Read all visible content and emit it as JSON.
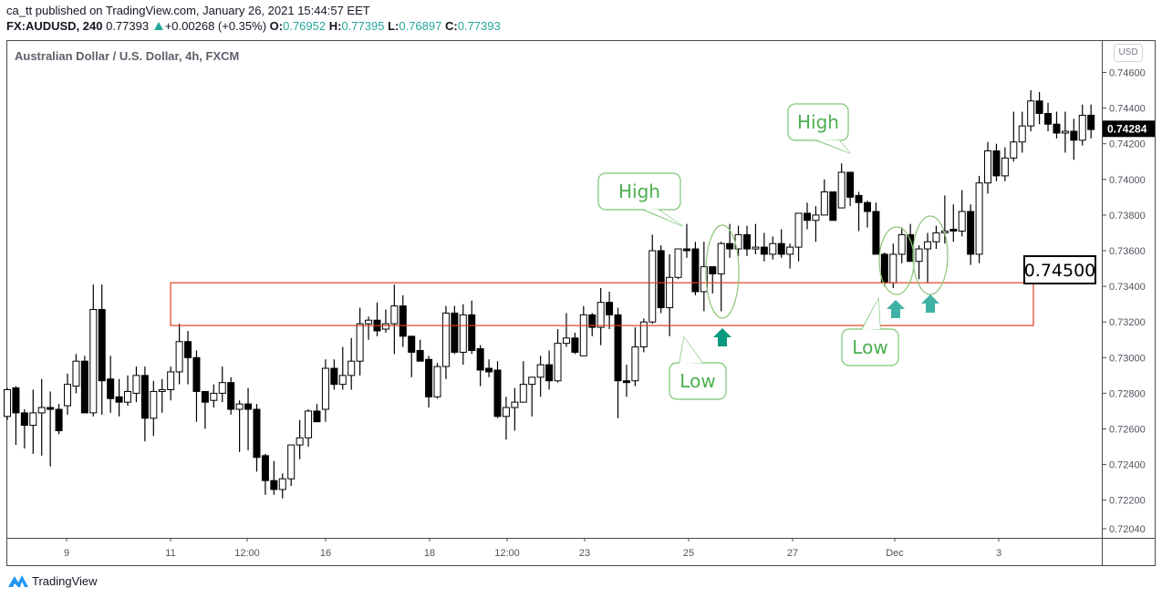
{
  "header": {
    "published_line": "ca_tt published on TradingView.com, January 26, 2021 15:44:57 EET",
    "symbol": "FX:AUDUSD, 240",
    "last": "0.77393",
    "change": "+0.00268 (+0.35%)",
    "o_label": "O:",
    "o": "0.76952",
    "h_label": "H:",
    "h": "0.77395",
    "l_label": "L:",
    "l": "0.76897",
    "c_label": "C:",
    "c": "0.77393"
  },
  "chart_title": "Australian Dollar / U.S. Dollar, 4h, FXCM",
  "currency_button": "USD",
  "footer_brand": "TradingView",
  "colors": {
    "up": "#ffffff",
    "down": "#000000",
    "zone": "#e0401f",
    "callout": "#7cc576",
    "callout_text": "#4caf50",
    "arrow_dark": "#089981",
    "arrow_light": "#3fb2a5",
    "accent": "#26a69a"
  },
  "chart_data": {
    "type": "candlestick",
    "ylim": [
      0.7196,
      0.7467
    ],
    "y_ticks": [
      "0.74600",
      "0.74400",
      "0.74200",
      "0.74000",
      "0.73800",
      "0.73600",
      "0.73400",
      "0.73200",
      "0.73000",
      "0.72800",
      "0.72600",
      "0.72400",
      "0.72200",
      "0.72040"
    ],
    "x_ticks": [
      "9",
      "11",
      "12:00",
      "16",
      "18",
      "12:00",
      "23",
      "25",
      "27",
      "Dec",
      "3"
    ],
    "last_price_label": "0.74284",
    "last_price": 0.74284,
    "ohlc": [
      [
        0.7267,
        0.7283,
        0.7265,
        0.7282
      ],
      [
        0.7283,
        0.7284,
        0.7251,
        0.7269
      ],
      [
        0.7269,
        0.7271,
        0.7249,
        0.7262
      ],
      [
        0.7262,
        0.7282,
        0.7246,
        0.7269
      ],
      [
        0.7269,
        0.7288,
        0.7245,
        0.7272
      ],
      [
        0.7272,
        0.7281,
        0.7239,
        0.7271
      ],
      [
        0.7271,
        0.7274,
        0.7257,
        0.7259
      ],
      [
        0.7273,
        0.7291,
        0.7268,
        0.7285
      ],
      [
        0.7284,
        0.7302,
        0.728,
        0.7298
      ],
      [
        0.7298,
        0.7301,
        0.7269,
        0.7269
      ],
      [
        0.7269,
        0.7341,
        0.7267,
        0.7327
      ],
      [
        0.7327,
        0.7341,
        0.7268,
        0.7287
      ],
      [
        0.7288,
        0.7301,
        0.7269,
        0.7277
      ],
      [
        0.7278,
        0.7288,
        0.7267,
        0.7275
      ],
      [
        0.7275,
        0.729,
        0.7273,
        0.7281
      ],
      [
        0.728,
        0.7295,
        0.7275,
        0.729
      ],
      [
        0.729,
        0.7295,
        0.7253,
        0.7266
      ],
      [
        0.7266,
        0.7287,
        0.7256,
        0.7281
      ],
      [
        0.7281,
        0.7288,
        0.7269,
        0.7282
      ],
      [
        0.7282,
        0.7295,
        0.7276,
        0.7292
      ],
      [
        0.7292,
        0.7319,
        0.7285,
        0.7309
      ],
      [
        0.7309,
        0.7315,
        0.7285,
        0.73
      ],
      [
        0.73,
        0.7304,
        0.7264,
        0.7281
      ],
      [
        0.7281,
        0.7281,
        0.726,
        0.7275
      ],
      [
        0.7276,
        0.7285,
        0.7272,
        0.728
      ],
      [
        0.728,
        0.7295,
        0.7275,
        0.7286
      ],
      [
        0.7286,
        0.7289,
        0.7268,
        0.7271
      ],
      [
        0.7271,
        0.7276,
        0.7247,
        0.7274
      ],
      [
        0.7274,
        0.7283,
        0.7248,
        0.7271
      ],
      [
        0.7271,
        0.7274,
        0.7236,
        0.7244
      ],
      [
        0.7245,
        0.7246,
        0.7223,
        0.7231
      ],
      [
        0.7231,
        0.7242,
        0.7223,
        0.7226
      ],
      [
        0.7226,
        0.7235,
        0.7221,
        0.7232
      ],
      [
        0.7232,
        0.7251,
        0.7228,
        0.7251
      ],
      [
        0.7251,
        0.7265,
        0.7243,
        0.7255
      ],
      [
        0.7255,
        0.7271,
        0.725,
        0.727
      ],
      [
        0.727,
        0.7274,
        0.7264,
        0.7264
      ],
      [
        0.7271,
        0.7299,
        0.7264,
        0.7294
      ],
      [
        0.7294,
        0.7299,
        0.7282,
        0.7285
      ],
      [
        0.7285,
        0.7306,
        0.7282,
        0.729
      ],
      [
        0.729,
        0.7311,
        0.7282,
        0.7298
      ],
      [
        0.7298,
        0.7328,
        0.729,
        0.7319
      ],
      [
        0.7319,
        0.7323,
        0.731,
        0.7321
      ],
      [
        0.7321,
        0.7331,
        0.7312,
        0.7315
      ],
      [
        0.7316,
        0.7327,
        0.7314,
        0.7319
      ],
      [
        0.7319,
        0.7341,
        0.7302,
        0.7329
      ],
      [
        0.7329,
        0.7335,
        0.7306,
        0.7312
      ],
      [
        0.7312,
        0.7312,
        0.7289,
        0.7303
      ],
      [
        0.7304,
        0.731,
        0.7298,
        0.7298
      ],
      [
        0.7299,
        0.7301,
        0.7272,
        0.7278
      ],
      [
        0.7278,
        0.7297,
        0.7277,
        0.7295
      ],
      [
        0.7295,
        0.7329,
        0.7288,
        0.7325
      ],
      [
        0.7325,
        0.7329,
        0.7302,
        0.7303
      ],
      [
        0.7303,
        0.733,
        0.7296,
        0.7324
      ],
      [
        0.7324,
        0.7332,
        0.7302,
        0.7304
      ],
      [
        0.7305,
        0.7307,
        0.7284,
        0.7293
      ],
      [
        0.7294,
        0.7299,
        0.7289,
        0.7292
      ],
      [
        0.7293,
        0.7298,
        0.7266,
        0.7267
      ],
      [
        0.7267,
        0.7278,
        0.7254,
        0.7272
      ],
      [
        0.7272,
        0.7283,
        0.7259,
        0.7275
      ],
      [
        0.7275,
        0.7298,
        0.7275,
        0.7285
      ],
      [
        0.7285,
        0.7289,
        0.7267,
        0.7289
      ],
      [
        0.7289,
        0.7301,
        0.7278,
        0.7296
      ],
      [
        0.7296,
        0.7304,
        0.7282,
        0.7287
      ],
      [
        0.7287,
        0.7316,
        0.7286,
        0.7308
      ],
      [
        0.7308,
        0.7325,
        0.7306,
        0.7311
      ],
      [
        0.7311,
        0.7314,
        0.7302,
        0.7303
      ],
      [
        0.7301,
        0.7329,
        0.7301,
        0.7324
      ],
      [
        0.7324,
        0.7325,
        0.7312,
        0.7317
      ],
      [
        0.7317,
        0.7339,
        0.7307,
        0.7331
      ],
      [
        0.7331,
        0.7337,
        0.7316,
        0.7324
      ],
      [
        0.7324,
        0.7328,
        0.7266,
        0.7287
      ],
      [
        0.7287,
        0.7296,
        0.7278,
        0.7286
      ],
      [
        0.7287,
        0.7317,
        0.7284,
        0.7306
      ],
      [
        0.7306,
        0.7322,
        0.7303,
        0.732
      ],
      [
        0.732,
        0.7369,
        0.7319,
        0.736
      ],
      [
        0.736,
        0.7363,
        0.7325,
        0.7328
      ],
      [
        0.7328,
        0.7358,
        0.7312,
        0.7345
      ],
      [
        0.7345,
        0.7361,
        0.7344,
        0.7361
      ],
      [
        0.7361,
        0.7375,
        0.7356,
        0.736
      ],
      [
        0.7361,
        0.7365,
        0.7335,
        0.7337
      ],
      [
        0.7337,
        0.7365,
        0.7326,
        0.7351
      ],
      [
        0.7351,
        0.7351,
        0.7336,
        0.7347
      ],
      [
        0.7347,
        0.7365,
        0.7326,
        0.7364
      ],
      [
        0.7364,
        0.7375,
        0.7356,
        0.7361
      ],
      [
        0.7361,
        0.7374,
        0.7357,
        0.7369
      ],
      [
        0.7369,
        0.7374,
        0.7357,
        0.7361
      ],
      [
        0.7361,
        0.7375,
        0.7358,
        0.7362
      ],
      [
        0.7362,
        0.737,
        0.7354,
        0.7358
      ],
      [
        0.7358,
        0.7368,
        0.7355,
        0.7364
      ],
      [
        0.7364,
        0.7372,
        0.7356,
        0.7358
      ],
      [
        0.7358,
        0.7364,
        0.735,
        0.7362
      ],
      [
        0.7362,
        0.7381,
        0.7354,
        0.7381
      ],
      [
        0.7381,
        0.7387,
        0.7372,
        0.7377
      ],
      [
        0.7377,
        0.7385,
        0.7365,
        0.738
      ],
      [
        0.738,
        0.74,
        0.738,
        0.7393
      ],
      [
        0.7393,
        0.7393,
        0.7377,
        0.7377
      ],
      [
        0.7384,
        0.7409,
        0.7384,
        0.7404
      ],
      [
        0.7404,
        0.7404,
        0.7385,
        0.739
      ],
      [
        0.7391,
        0.7393,
        0.7371,
        0.7387
      ],
      [
        0.7387,
        0.7388,
        0.7373,
        0.7382
      ],
      [
        0.7382,
        0.7387,
        0.7358,
        0.7358
      ],
      [
        0.7358,
        0.7359,
        0.734,
        0.7342
      ],
      [
        0.7342,
        0.7364,
        0.7339,
        0.7358
      ],
      [
        0.7358,
        0.7373,
        0.7353,
        0.7369
      ],
      [
        0.7369,
        0.7375,
        0.7354,
        0.7354
      ],
      [
        0.7354,
        0.7363,
        0.7344,
        0.7361
      ],
      [
        0.7361,
        0.737,
        0.7342,
        0.7365
      ],
      [
        0.7365,
        0.7374,
        0.7361,
        0.737
      ],
      [
        0.737,
        0.7391,
        0.7364,
        0.7371
      ],
      [
        0.7372,
        0.7386,
        0.7365,
        0.7371
      ],
      [
        0.7371,
        0.7394,
        0.7368,
        0.7382
      ],
      [
        0.7382,
        0.7386,
        0.7352,
        0.7358
      ],
      [
        0.7358,
        0.7402,
        0.7353,
        0.7398
      ],
      [
        0.7398,
        0.7421,
        0.7392,
        0.7416
      ],
      [
        0.7416,
        0.742,
        0.7399,
        0.7402
      ],
      [
        0.7402,
        0.7418,
        0.7399,
        0.7412
      ],
      [
        0.7412,
        0.7438,
        0.741,
        0.7421
      ],
      [
        0.7421,
        0.7438,
        0.7415,
        0.743
      ],
      [
        0.743,
        0.745,
        0.7427,
        0.7444
      ],
      [
        0.7444,
        0.7449,
        0.7431,
        0.7437
      ],
      [
        0.7437,
        0.7443,
        0.7427,
        0.7431
      ],
      [
        0.7431,
        0.7438,
        0.7423,
        0.7426
      ],
      [
        0.7426,
        0.7438,
        0.7415,
        0.7427
      ],
      [
        0.7427,
        0.7434,
        0.7411,
        0.7422
      ],
      [
        0.7422,
        0.7442,
        0.7419,
        0.7436
      ],
      [
        0.7436,
        0.7442,
        0.7423,
        0.7428
      ]
    ],
    "zone": {
      "top": 0.7342,
      "bottom": 0.7318,
      "label": "0.74500"
    },
    "annotations": [
      {
        "type": "callout",
        "text": "High"
      },
      {
        "type": "callout",
        "text": "Low"
      },
      {
        "type": "callout",
        "text": "High"
      },
      {
        "type": "callout",
        "text": "Low"
      }
    ]
  }
}
